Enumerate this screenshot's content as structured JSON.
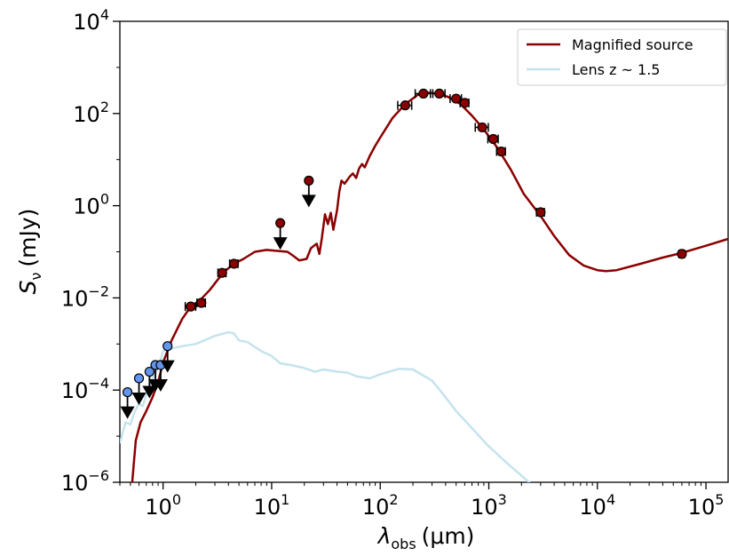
{
  "chart_data": {
    "type": "line",
    "x_scale": "log",
    "y_scale": "log",
    "xlim": [
      0.4,
      160000
    ],
    "ylim": [
      1e-06,
      10000
    ],
    "xlabel": {
      "main": "λ",
      "sub": "obs",
      "unit": "(μm)"
    },
    "ylabel": {
      "main": "S",
      "sub": "ν",
      "unit": "(mJy)"
    },
    "x_ticks": [
      {
        "base": "10",
        "exp": "0",
        "value": 1
      },
      {
        "base": "10",
        "exp": "1",
        "value": 10
      },
      {
        "base": "10",
        "exp": "2",
        "value": 100
      },
      {
        "base": "10",
        "exp": "3",
        "value": 1000
      },
      {
        "base": "10",
        "exp": "4",
        "value": 10000
      },
      {
        "base": "10",
        "exp": "5",
        "value": 100000
      }
    ],
    "y_ticks": [
      {
        "base": "10",
        "exp": "−6",
        "value": 1e-06
      },
      {
        "base": "10",
        "exp": "−4",
        "value": 0.0001
      },
      {
        "base": "10",
        "exp": "−2",
        "value": 0.01
      },
      {
        "base": "10",
        "exp": "0",
        "value": 1
      },
      {
        "base": "10",
        "exp": "2",
        "value": 100
      },
      {
        "base": "10",
        "exp": "4",
        "value": 10000
      }
    ],
    "legend_position": "top-right",
    "series": [
      {
        "name": "Magnified source",
        "color": "#8b0000",
        "points": [
          [
            0.52,
            1e-06
          ],
          [
            0.56,
            8e-06
          ],
          [
            0.62,
            2e-05
          ],
          [
            0.7,
            3.5e-05
          ],
          [
            0.8,
            7e-05
          ],
          [
            0.9,
            0.00015
          ],
          [
            1.0,
            0.0004
          ],
          [
            1.2,
            0.0012
          ],
          [
            1.5,
            0.0035
          ],
          [
            1.8,
            0.0065
          ],
          [
            2.2,
            0.009
          ],
          [
            2.7,
            0.015
          ],
          [
            3.2,
            0.025
          ],
          [
            3.8,
            0.04
          ],
          [
            4.5,
            0.055
          ],
          [
            5.5,
            0.07
          ],
          [
            7,
            0.1
          ],
          [
            9,
            0.11
          ],
          [
            11,
            0.105
          ],
          [
            14,
            0.1
          ],
          [
            16,
            0.08
          ],
          [
            18,
            0.065
          ],
          [
            21,
            0.07
          ],
          [
            23,
            0.12
          ],
          [
            26,
            0.15
          ],
          [
            27.5,
            0.09
          ],
          [
            29,
            0.2
          ],
          [
            31,
            0.65
          ],
          [
            33,
            0.4
          ],
          [
            35,
            0.7
          ],
          [
            37,
            0.3
          ],
          [
            40,
            0.8
          ],
          [
            42,
            2.0
          ],
          [
            44,
            3.5
          ],
          [
            47,
            3.0
          ],
          [
            52,
            4.2
          ],
          [
            56,
            5.0
          ],
          [
            60,
            4.0
          ],
          [
            64,
            6.5
          ],
          [
            68,
            8.0
          ],
          [
            72,
            6.8
          ],
          [
            80,
            12
          ],
          [
            90,
            20
          ],
          [
            100,
            30
          ],
          [
            130,
            80
          ],
          [
            170,
            160
          ],
          [
            220,
            250
          ],
          [
            270,
            285
          ],
          [
            330,
            270
          ],
          [
            420,
            230
          ],
          [
            550,
            160
          ],
          [
            700,
            90
          ],
          [
            900,
            45
          ],
          [
            1200,
            18
          ],
          [
            1600,
            6
          ],
          [
            2100,
            1.8
          ],
          [
            3000,
            0.6
          ],
          [
            4000,
            0.22
          ],
          [
            5500,
            0.085
          ],
          [
            7500,
            0.05
          ],
          [
            10000,
            0.04
          ],
          [
            12000,
            0.038
          ],
          [
            15000,
            0.04
          ],
          [
            25000,
            0.055
          ],
          [
            40000,
            0.075
          ],
          [
            60000,
            0.095
          ],
          [
            100000,
            0.135
          ],
          [
            160000,
            0.19
          ]
        ]
      },
      {
        "name": "Lens z ~ 1.5",
        "color": "#c5e3ee",
        "points": [
          [
            0.4,
            7e-06
          ],
          [
            0.45,
            2e-05
          ],
          [
            0.5,
            1.8e-05
          ],
          [
            0.55,
            3.5e-05
          ],
          [
            0.6,
            5e-05
          ],
          [
            0.65,
            4.5e-05
          ],
          [
            0.7,
            8e-05
          ],
          [
            0.75,
            0.00013
          ],
          [
            0.8,
            0.00018
          ],
          [
            0.9,
            0.0003
          ],
          [
            1.0,
            0.0007
          ],
          [
            1.2,
            0.0008
          ],
          [
            1.5,
            0.0009
          ],
          [
            2,
            0.001
          ],
          [
            3,
            0.0015
          ],
          [
            4,
            0.0018
          ],
          [
            4.5,
            0.0017
          ],
          [
            5,
            0.0012
          ],
          [
            6,
            0.0011
          ],
          [
            8,
            0.0007
          ],
          [
            10,
            0.00055
          ],
          [
            12,
            0.00038
          ],
          [
            15,
            0.00035
          ],
          [
            20,
            0.0003
          ],
          [
            25,
            0.00025
          ],
          [
            30,
            0.00028
          ],
          [
            40,
            0.00025
          ],
          [
            50,
            0.00024
          ],
          [
            60,
            0.0002
          ],
          [
            80,
            0.00018
          ],
          [
            100,
            0.00022
          ],
          [
            150,
            0.00029
          ],
          [
            200,
            0.00028
          ],
          [
            300,
            0.00016
          ],
          [
            400,
            7e-05
          ],
          [
            500,
            3.5e-05
          ],
          [
            700,
            1.5e-05
          ],
          [
            1000,
            6e-06
          ],
          [
            1500,
            2.5e-06
          ],
          [
            2000,
            1.4e-06
          ],
          [
            2600,
            8e-07
          ]
        ]
      }
    ],
    "detections": {
      "marker_color": "#8b0000",
      "points": [
        [
          1.8,
          0.0065,
          0.2
        ],
        [
          2.25,
          0.0078,
          0.2
        ],
        [
          3.5,
          0.035,
          0.3
        ],
        [
          4.5,
          0.055,
          0.4
        ],
        [
          170,
          150,
          25
        ],
        [
          250,
          270,
          40
        ],
        [
          350,
          270,
          45
        ],
        [
          500,
          210,
          60
        ],
        [
          600,
          170,
          55
        ],
        [
          870,
          50,
          120
        ],
        [
          1100,
          28,
          120
        ],
        [
          1300,
          15,
          120
        ],
        [
          3000,
          0.72,
          250
        ],
        [
          60000,
          0.09,
          3500
        ]
      ]
    },
    "upper_limits": {
      "arrow_color": "#000000",
      "points": [
        [
          0.47,
          9e-05,
          "#6495ed"
        ],
        [
          0.6,
          0.00018,
          "#6495ed"
        ],
        [
          0.75,
          0.00025,
          "#6495ed"
        ],
        [
          0.85,
          0.00035,
          "#6495ed"
        ],
        [
          0.95,
          0.00035,
          "#6495ed"
        ],
        [
          1.1,
          0.0009,
          "#6495ed"
        ],
        [
          12,
          0.42,
          "#8b0000"
        ],
        [
          22,
          3.5,
          "#8b0000"
        ]
      ]
    }
  }
}
